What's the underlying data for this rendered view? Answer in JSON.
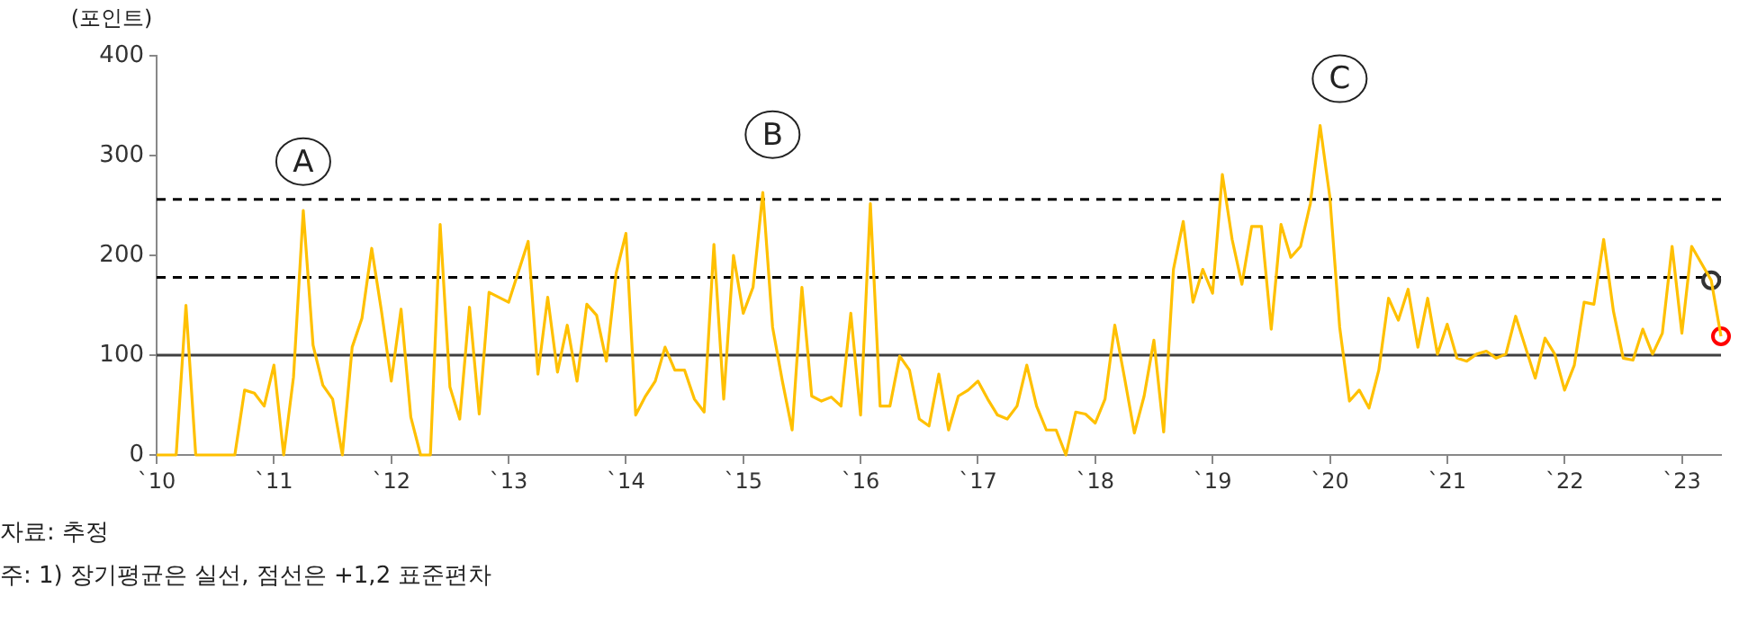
{
  "chart_data": {
    "type": "line",
    "ylabel": "(포인트)",
    "annotations": [
      {
        "text": "A",
        "x": "2011-04",
        "y": 294
      },
      {
        "text": "B",
        "x": "2015-04",
        "y": 321
      },
      {
        "text": "C",
        "x": "2020-02",
        "y": 377
      },
      "자료: 추정",
      "주: 1) 장기평균은 실선, 점선은 +1,2 표준편차"
    ],
    "xlim": [
      "2010-01",
      "2023-05"
    ],
    "xticks": [
      {
        "value": "2010",
        "label": "`10"
      },
      {
        "value": "2011",
        "label": "`11"
      },
      {
        "value": "2012",
        "label": "`12"
      },
      {
        "value": "2013",
        "label": "`13"
      },
      {
        "value": "2014",
        "label": "`14"
      },
      {
        "value": "2015",
        "label": "`15"
      },
      {
        "value": "2016",
        "label": "`16"
      },
      {
        "value": "2017",
        "label": "`17"
      },
      {
        "value": "2018",
        "label": "`18"
      },
      {
        "value": "2019",
        "label": "`19"
      },
      {
        "value": "2020",
        "label": "`20"
      },
      {
        "value": "2021",
        "label": "`21"
      },
      {
        "value": "2022",
        "label": "`22"
      },
      {
        "value": "2023",
        "label": "`23"
      }
    ],
    "ylim": [
      0,
      400
    ],
    "yticks": [
      0,
      100,
      200,
      300,
      400
    ],
    "grid": false,
    "legend": false,
    "marker": "none",
    "series": [
      {
        "color": "#ffc000",
        "x": [
          "2010-01",
          "2010-03",
          "2010-04",
          "2010-05",
          "2010-09",
          "2010-10",
          "2010-11",
          "2010-12",
          "2011-01",
          "2011-02",
          "2011-03",
          "2011-04",
          "2011-05",
          "2011-06",
          "2011-07",
          "2011-08",
          "2011-09",
          "2011-10",
          "2011-11",
          "2011-12",
          "2012-01",
          "2012-02",
          "2012-03",
          "2012-04",
          "2012-05",
          "2012-06",
          "2012-07",
          "2012-08",
          "2012-09",
          "2012-10",
          "2012-11",
          "2013-01",
          "2013-03",
          "2013-04",
          "2013-05",
          "2013-06",
          "2013-07",
          "2013-08",
          "2013-09",
          "2013-10",
          "2013-11",
          "2013-12",
          "2014-01",
          "2014-02",
          "2014-03",
          "2014-04",
          "2014-05",
          "2014-06",
          "2014-07",
          "2014-08",
          "2014-09",
          "2014-10",
          "2014-11",
          "2014-12",
          "2015-01",
          "2015-02",
          "2015-03",
          "2015-04",
          "2015-05",
          "2015-06",
          "2015-07",
          "2015-08",
          "2015-09",
          "2015-10",
          "2015-11",
          "2015-12",
          "2016-01",
          "2016-02",
          "2016-03",
          "2016-04",
          "2016-05",
          "2016-06",
          "2016-07",
          "2016-08",
          "2016-09",
          "2016-10",
          "2016-11",
          "2016-12",
          "2017-01",
          "2017-02",
          "2017-03",
          "2017-04",
          "2017-05",
          "2017-06",
          "2017-07",
          "2017-08",
          "2017-09",
          "2017-10",
          "2017-11",
          "2017-12",
          "2018-01",
          "2018-02",
          "2018-03",
          "2018-04",
          "2018-05",
          "2018-06",
          "2018-07",
          "2018-08",
          "2018-09",
          "2018-10",
          "2018-11",
          "2018-12",
          "2019-01",
          "2019-02",
          "2019-03",
          "2019-04",
          "2019-05",
          "2019-06",
          "2019-07",
          "2019-08",
          "2019-09",
          "2019-10",
          "2019-11",
          "2019-12",
          "2020-01",
          "2020-02",
          "2020-03",
          "2020-04",
          "2020-05",
          "2020-06",
          "2020-07",
          "2020-08",
          "2020-09",
          "2020-10",
          "2020-11",
          "2020-12",
          "2021-01",
          "2021-02",
          "2021-03",
          "2021-04",
          "2021-05",
          "2021-06",
          "2021-07",
          "2021-08",
          "2021-09",
          "2021-10",
          "2021-11",
          "2021-12",
          "2022-01",
          "2022-02",
          "2022-03",
          "2022-04",
          "2022-05",
          "2022-06",
          "2022-07",
          "2022-08",
          "2022-09",
          "2022-10",
          "2022-11",
          "2022-12",
          "2023-01",
          "2023-02",
          "2023-04",
          "2023-05"
        ],
        "values": [
          0,
          0,
          150,
          0,
          0,
          65,
          62,
          49,
          90,
          0,
          78,
          245,
          110,
          70,
          56,
          0,
          108,
          137,
          207,
          144,
          74,
          146,
          38,
          0,
          0,
          231,
          68,
          36,
          148,
          41,
          163,
          153,
          214,
          81,
          158,
          83,
          130,
          74,
          151,
          140,
          94,
          182,
          222,
          40,
          59,
          74,
          108,
          85,
          85,
          56,
          43,
          211,
          56,
          200,
          142,
          168,
          263,
          128,
          74,
          25,
          168,
          59,
          54,
          58,
          49,
          142,
          40,
          252,
          49,
          49,
          99,
          85,
          36,
          29,
          81,
          25,
          59,
          65,
          74,
          56,
          40,
          36,
          49,
          90,
          49,
          25,
          25,
          0,
          43,
          41,
          32,
          56,
          130,
          77,
          22,
          59,
          115,
          23,
          186,
          234,
          153,
          186,
          162,
          281,
          216,
          171,
          229,
          229,
          126,
          231,
          198,
          209,
          252,
          330,
          258,
          128,
          54,
          65,
          47,
          85,
          157,
          135,
          166,
          108,
          157,
          101,
          131,
          97,
          94,
          101,
          104,
          97,
          101,
          139,
          108,
          77,
          117,
          101,
          65,
          90,
          153,
          151,
          216,
          144,
          97,
          95,
          126,
          101,
          122,
          209,
          122,
          209,
          175,
          119
        ]
      },
      {
        "type": "scatter",
        "color": "#333333",
        "marker": "circle",
        "x": [
          "2023-04"
        ],
        "values": [
          175
        ]
      },
      {
        "type": "scatter",
        "color": "#ff0000",
        "marker": "circle",
        "x": [
          "2023-05"
        ],
        "values": [
          119
        ]
      }
    ],
    "ref_lines": [
      {
        "axis": "y",
        "value": 100,
        "color": "#404040",
        "line_style": "solid"
      },
      {
        "axis": "y",
        "value": 178,
        "color": "#000000",
        "line_style": "dashed"
      },
      {
        "axis": "y",
        "value": 256,
        "color": "#000000",
        "line_style": "dashed"
      }
    ]
  }
}
